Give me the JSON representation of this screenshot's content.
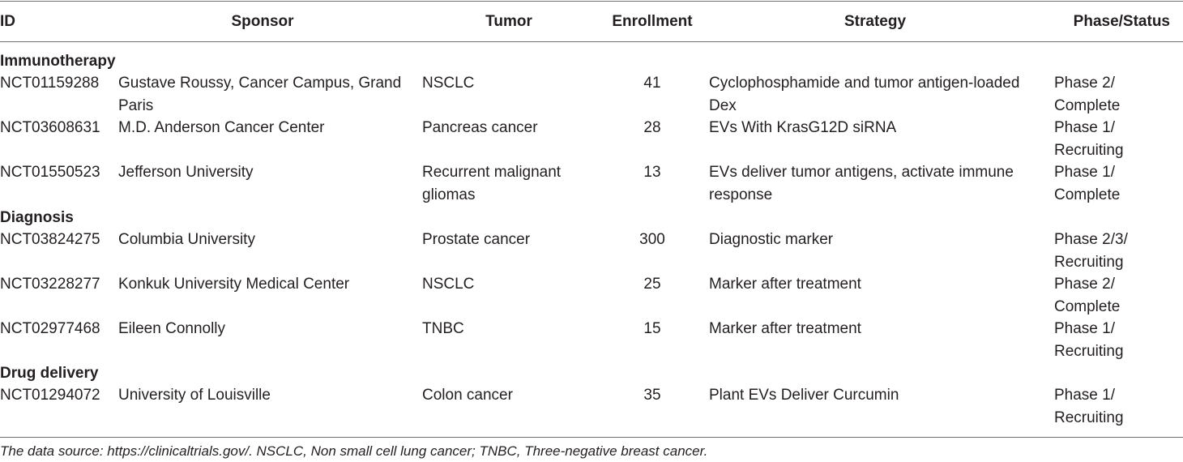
{
  "columns": {
    "id": "ID",
    "sponsor": "Sponsor",
    "tumor": "Tumor",
    "enrollment": "Enrollment",
    "strategy": "Strategy",
    "phase_status": "Phase/Status"
  },
  "sections": [
    {
      "title": "Immunotherapy",
      "rows": [
        {
          "id": "NCT01159288",
          "sponsor": "Gustave Roussy, Cancer Campus, Grand Paris",
          "tumor": "NSCLC",
          "enrollment": "41",
          "strategy": "Cyclophosphamide and tumor antigen-loaded Dex",
          "phase_status": "Phase 2/ Complete"
        },
        {
          "id": "NCT03608631",
          "sponsor": "M.D. Anderson Cancer Center",
          "tumor": "Pancreas cancer",
          "enrollment": "28",
          "strategy": "EVs With KrasG12D siRNA",
          "phase_status": "Phase 1/ Recruiting"
        },
        {
          "id": "NCT01550523",
          "sponsor": "Jefferson University",
          "tumor": "Recurrent malignant gliomas",
          "enrollment": "13",
          "strategy": "EVs deliver tumor antigens, activate immune response",
          "phase_status": "Phase 1/ Complete"
        }
      ]
    },
    {
      "title": "Diagnosis",
      "rows": [
        {
          "id": "NCT03824275",
          "sponsor": "Columbia University",
          "tumor": "Prostate cancer",
          "enrollment": "300",
          "strategy": "Diagnostic marker",
          "phase_status": "Phase 2/3/ Recruiting"
        },
        {
          "id": "NCT03228277",
          "sponsor": "Konkuk University Medical Center",
          "tumor": "NSCLC",
          "enrollment": "25",
          "strategy": "Marker after treatment",
          "phase_status": "Phase 2/ Complete"
        },
        {
          "id": "NCT02977468",
          "sponsor": "Eileen Connolly",
          "tumor": "TNBC",
          "enrollment": "15",
          "strategy": "Marker after treatment",
          "phase_status": "Phase 1/ Recruiting"
        }
      ]
    },
    {
      "title": "Drug delivery",
      "rows": [
        {
          "id": "NCT01294072",
          "sponsor": "University of Louisville",
          "tumor": "Colon cancer",
          "enrollment": "35",
          "strategy": "Plant EVs Deliver Curcumin",
          "phase_status": "Phase 1/ Recruiting"
        }
      ]
    }
  ],
  "footnote": "The data source: https://clinicaltrials.gov/. NSCLC, Non small cell lung cancer; TNBC, Three-negative breast cancer."
}
